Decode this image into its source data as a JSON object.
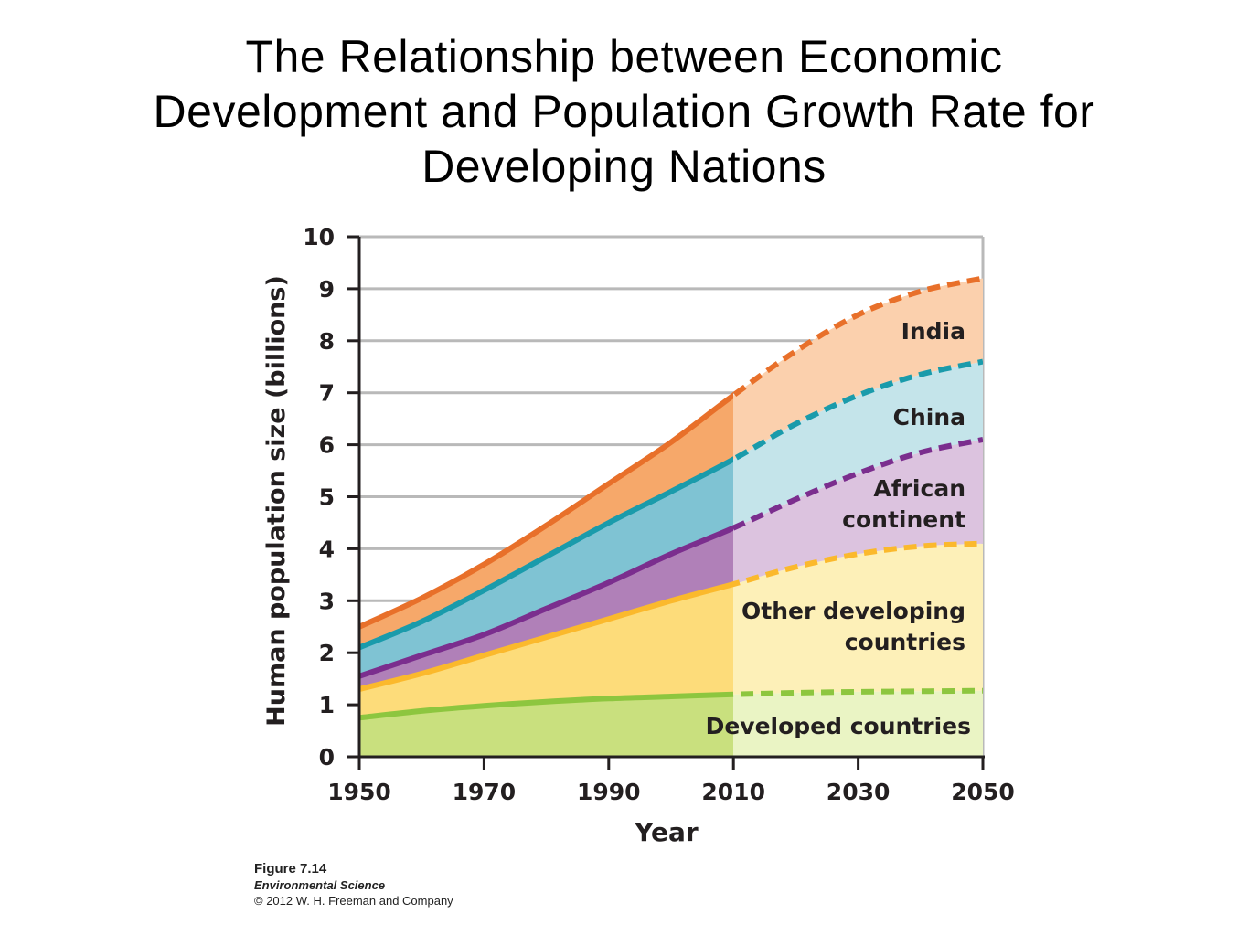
{
  "slide": {
    "title_lines": [
      "The Relationship between Economic",
      "Development and Population Growth Rate for",
      "Developing Nations"
    ]
  },
  "figure": {
    "number": "Figure 7.14",
    "book": "Environmental Science",
    "copyright": "© 2012 W. H. Freeman and Company"
  },
  "chart_data": {
    "type": "area",
    "stacked": true,
    "title": "",
    "xlabel": "Year",
    "ylabel": "Human population size (billions)",
    "xlim": [
      1950,
      2050
    ],
    "ylim": [
      0,
      10
    ],
    "x_ticks": [
      "1950",
      "1970",
      "1990",
      "2010",
      "2030",
      "2050"
    ],
    "y_ticks": [
      "0",
      "1",
      "2",
      "3",
      "4",
      "5",
      "6",
      "7",
      "8",
      "9",
      "10"
    ],
    "grid": "horizontal",
    "projection_start": 2010,
    "projection_note": "dashed lines after 2010",
    "x": [
      1950,
      1960,
      1970,
      1980,
      1990,
      2000,
      2010,
      2020,
      2030,
      2040,
      2050
    ],
    "series": [
      {
        "name": "Developed countries",
        "label_lines": [
          "Developed countries"
        ],
        "cumulative": [
          0.75,
          0.88,
          0.98,
          1.06,
          1.12,
          1.16,
          1.2,
          1.23,
          1.25,
          1.26,
          1.27
        ],
        "line_color": "#8dc63f",
        "fill_color": "#c9e07e",
        "projection_fill": "#eaf4c4"
      },
      {
        "name": "Other developing countries",
        "label_lines": [
          "Other developing",
          "countries"
        ],
        "cumulative": [
          1.3,
          1.6,
          1.95,
          2.3,
          2.65,
          3.0,
          3.32,
          3.65,
          3.9,
          4.05,
          4.1
        ],
        "line_color": "#fbb92c",
        "fill_color": "#fddc7a",
        "projection_fill": "#fdf0b8"
      },
      {
        "name": "African continent",
        "label_lines": [
          "African",
          "continent"
        ],
        "cumulative": [
          1.55,
          1.95,
          2.35,
          2.85,
          3.35,
          3.9,
          4.4,
          4.95,
          5.45,
          5.85,
          6.1
        ],
        "line_color": "#7b2e8e",
        "fill_color": "#b080b8",
        "projection_fill": "#dcc3df"
      },
      {
        "name": "China",
        "label_lines": [
          "China"
        ],
        "cumulative": [
          2.1,
          2.6,
          3.2,
          3.85,
          4.5,
          5.1,
          5.72,
          6.4,
          6.95,
          7.35,
          7.6
        ],
        "line_color": "#1a9bab",
        "fill_color": "#7fc3d3",
        "projection_fill": "#c4e4ea"
      },
      {
        "name": "India",
        "label_lines": [
          "India"
        ],
        "cumulative": [
          2.5,
          3.05,
          3.7,
          4.45,
          5.25,
          6.05,
          6.95,
          7.8,
          8.5,
          8.95,
          9.2
        ],
        "line_color": "#e8702a",
        "fill_color": "#f6a86a",
        "projection_fill": "#fbd0ad"
      }
    ]
  }
}
